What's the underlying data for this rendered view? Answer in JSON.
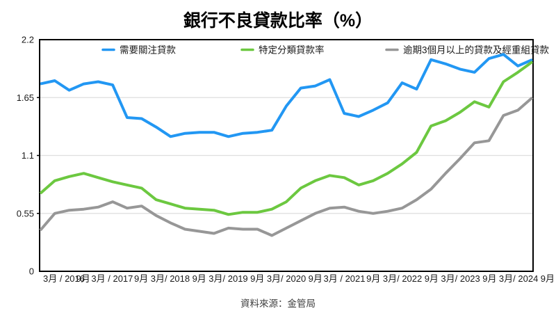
{
  "title": "銀行不良貸款比率（%）",
  "source": "資料來源：金管局",
  "colors": {
    "blue": "#2297f3",
    "green": "#6cc840",
    "gray": "#979797",
    "gridline": "#dedede",
    "border": "#000000",
    "text": "#1a1a1a",
    "source_text": "#3d3d3d"
  },
  "legend": [
    {
      "label": "需要關注貸款",
      "color": "#2297f3"
    },
    {
      "label": "特定分類貸款率",
      "color": "#6cc840"
    },
    {
      "label": "逾期3個月以上的貸款及經重組貸款",
      "color": "#979797"
    }
  ],
  "chart_data": {
    "type": "line",
    "title": "銀行不良貸款比率（%）",
    "xlabel": "",
    "ylabel": "",
    "ylim": [
      0,
      2.2
    ],
    "yticks": [
      0,
      0.55,
      1.1,
      1.65,
      2.2
    ],
    "ytick_labels": [
      "0",
      "0.55",
      "1.1",
      "1.65",
      "2.2"
    ],
    "grid": "horizontal",
    "legend_position": "top",
    "x_tick_labels": [
      "3月 / 2016",
      "9月",
      "3月 / 2017",
      "9月",
      "3月/ 2018",
      "9月",
      "3月/ 2019",
      "9月",
      "3月/ 2020",
      "9月",
      "3月 / 2021",
      "9月",
      "3月/ 2022",
      "9月",
      "3月/ 2023",
      "9月",
      "3月/ 2024",
      "9月"
    ],
    "x_quarters": [
      "2016 Q1",
      "2016 Q2",
      "2016 Q3",
      "2016 Q4",
      "2017 Q1",
      "2017 Q2",
      "2017 Q3",
      "2017 Q4",
      "2018 Q1",
      "2018 Q2",
      "2018 Q3",
      "2018 Q4",
      "2019 Q1",
      "2019 Q2",
      "2019 Q3",
      "2019 Q4",
      "2020 Q1",
      "2020 Q2",
      "2020 Q3",
      "2020 Q4",
      "2021 Q1",
      "2021 Q2",
      "2021 Q3",
      "2021 Q4",
      "2022 Q1",
      "2022 Q2",
      "2022 Q3",
      "2022 Q4",
      "2023 Q1",
      "2023 Q2",
      "2023 Q3",
      "2023 Q4",
      "2024 Q1",
      "2024 Q2",
      "2024 Q3"
    ],
    "series": [
      {
        "name": "需要關注貸款",
        "color": "#2297f3",
        "values": [
          1.78,
          1.81,
          1.72,
          1.78,
          1.8,
          1.77,
          1.46,
          1.45,
          1.37,
          1.28,
          1.31,
          1.32,
          1.32,
          1.28,
          1.31,
          1.32,
          1.34,
          1.57,
          1.74,
          1.76,
          1.82,
          1.5,
          1.47,
          1.53,
          1.6,
          1.79,
          1.73,
          2.01,
          1.97,
          1.92,
          1.89,
          2.02,
          2.06,
          1.95,
          2.01
        ]
      },
      {
        "name": "特定分類貸款率",
        "color": "#6cc840",
        "values": [
          0.74,
          0.86,
          0.9,
          0.93,
          0.89,
          0.85,
          0.82,
          0.79,
          0.68,
          0.64,
          0.6,
          0.59,
          0.58,
          0.54,
          0.56,
          0.56,
          0.59,
          0.66,
          0.79,
          0.86,
          0.91,
          0.89,
          0.82,
          0.86,
          0.93,
          1.02,
          1.13,
          1.38,
          1.43,
          1.51,
          1.61,
          1.56,
          1.8,
          1.89,
          1.99
        ]
      },
      {
        "name": "逾期3個月以上的貸款及經重組貸款",
        "color": "#979797",
        "values": [
          0.39,
          0.55,
          0.58,
          0.59,
          0.61,
          0.66,
          0.6,
          0.62,
          0.53,
          0.46,
          0.4,
          0.38,
          0.36,
          0.41,
          0.4,
          0.4,
          0.34,
          0.41,
          0.48,
          0.55,
          0.6,
          0.61,
          0.57,
          0.55,
          0.57,
          0.6,
          0.68,
          0.78,
          0.93,
          1.07,
          1.22,
          1.24,
          1.48,
          1.53,
          1.65
        ]
      }
    ]
  }
}
